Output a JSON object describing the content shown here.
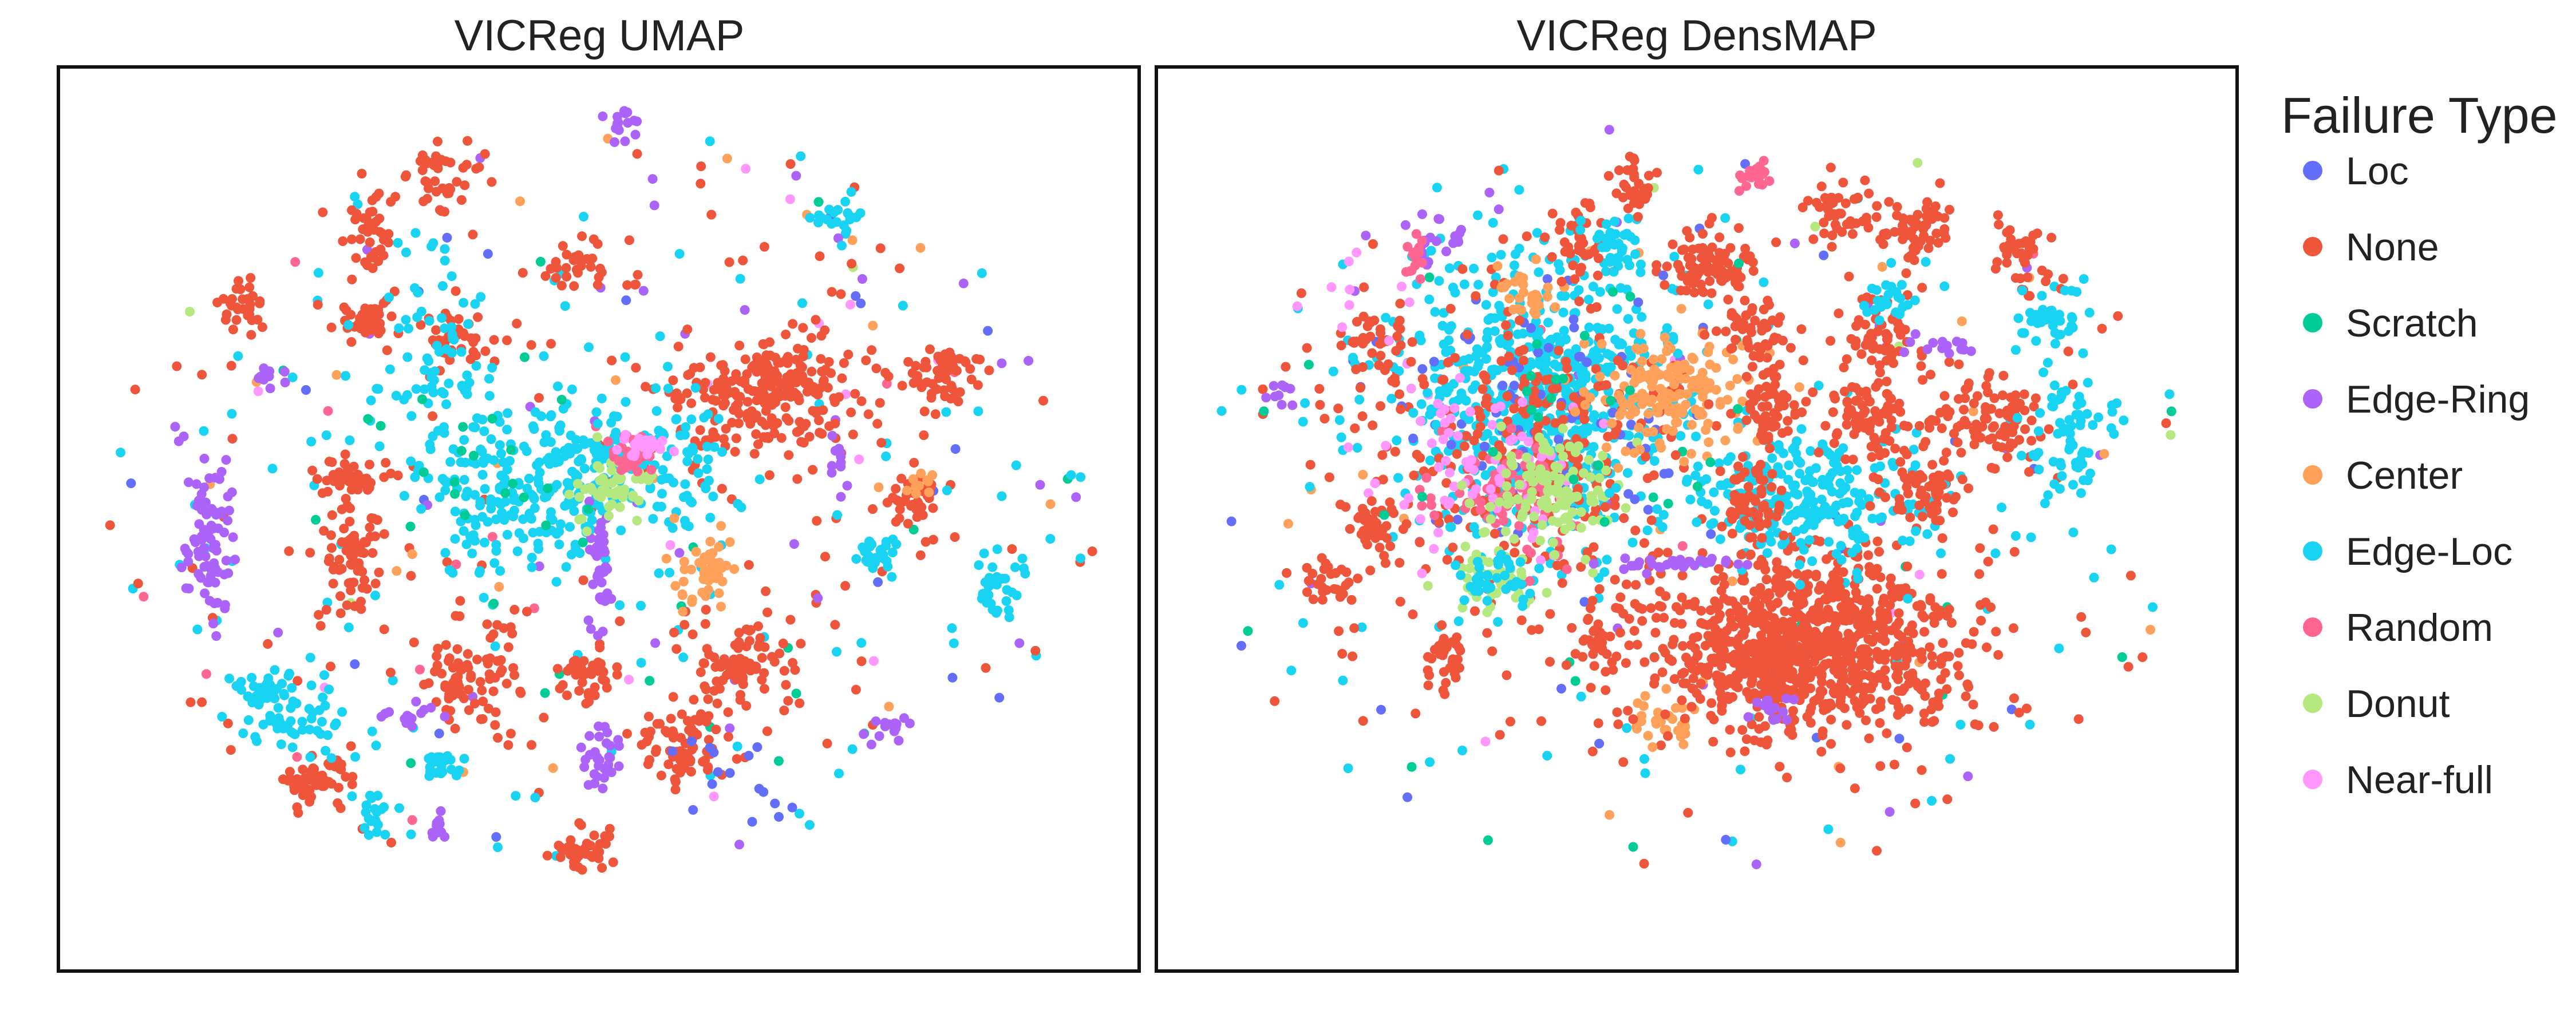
{
  "chart_data": {
    "type": "scatter",
    "legend": {
      "title": "Failure Type",
      "placement": "right"
    },
    "categories": [
      {
        "name": "Loc",
        "color": "#636efa"
      },
      {
        "name": "None",
        "color": "#ef553b"
      },
      {
        "name": "Scratch",
        "color": "#00cc96"
      },
      {
        "name": "Edge-Ring",
        "color": "#ab63fa"
      },
      {
        "name": "Center",
        "color": "#ffa15a"
      },
      {
        "name": "Edge-Loc",
        "color": "#19d3f3"
      },
      {
        "name": "Random",
        "color": "#ff6692"
      },
      {
        "name": "Donut",
        "color": "#b6e880"
      },
      {
        "name": "Near-full",
        "color": "#ff97ff"
      }
    ],
    "panels": [
      {
        "title": "VICReg UMAP",
        "axes_visible": false,
        "grid": false,
        "clusters": [
          {
            "cat": "Edge-Ring",
            "x": 0.14,
            "y": 0.52,
            "sx": 0.012,
            "sy": 0.045,
            "n": 90
          },
          {
            "cat": "None",
            "x": 0.27,
            "y": 0.54,
            "sx": 0.012,
            "sy": 0.035,
            "n": 70
          },
          {
            "cat": "None",
            "x": 0.38,
            "y": 0.67,
            "sx": 0.025,
            "sy": 0.03,
            "n": 90
          },
          {
            "cat": "None",
            "x": 0.49,
            "y": 0.67,
            "sx": 0.015,
            "sy": 0.015,
            "n": 40
          },
          {
            "cat": "None",
            "x": 0.58,
            "y": 0.75,
            "sx": 0.022,
            "sy": 0.02,
            "n": 70
          },
          {
            "cat": "None",
            "x": 0.63,
            "y": 0.66,
            "sx": 0.025,
            "sy": 0.025,
            "n": 80
          },
          {
            "cat": "None",
            "x": 0.48,
            "y": 0.87,
            "sx": 0.014,
            "sy": 0.012,
            "n": 40
          },
          {
            "cat": "None",
            "x": 0.24,
            "y": 0.79,
            "sx": 0.02,
            "sy": 0.012,
            "n": 50
          },
          {
            "cat": "None",
            "x": 0.66,
            "y": 0.36,
            "sx": 0.045,
            "sy": 0.032,
            "n": 260
          },
          {
            "cat": "None",
            "x": 0.82,
            "y": 0.34,
            "sx": 0.018,
            "sy": 0.02,
            "n": 60
          },
          {
            "cat": "None",
            "x": 0.79,
            "y": 0.48,
            "sx": 0.015,
            "sy": 0.015,
            "n": 40
          },
          {
            "cat": "None",
            "x": 0.29,
            "y": 0.28,
            "sx": 0.015,
            "sy": 0.015,
            "n": 40
          },
          {
            "cat": "None",
            "x": 0.36,
            "y": 0.12,
            "sx": 0.015,
            "sy": 0.02,
            "n": 40
          },
          {
            "cat": "None",
            "x": 0.48,
            "y": 0.22,
            "sx": 0.012,
            "sy": 0.015,
            "n": 30
          },
          {
            "cat": "None",
            "x": 0.29,
            "y": 0.18,
            "sx": 0.012,
            "sy": 0.025,
            "n": 40
          },
          {
            "cat": "None",
            "x": 0.37,
            "y": 0.3,
            "sx": 0.018,
            "sy": 0.02,
            "n": 40
          },
          {
            "cat": "None",
            "x": 0.17,
            "y": 0.27,
            "sx": 0.01,
            "sy": 0.015,
            "n": 30
          },
          {
            "cat": "None",
            "x": 0.27,
            "y": 0.45,
            "sx": 0.025,
            "sy": 0.01,
            "n": 40
          },
          {
            "cat": "Edge-Loc",
            "x": 0.42,
            "y": 0.48,
            "sx": 0.04,
            "sy": 0.04,
            "n": 160
          },
          {
            "cat": "Edge-Loc",
            "x": 0.49,
            "y": 0.44,
            "sx": 0.035,
            "sy": 0.04,
            "n": 120
          },
          {
            "cat": "Edge-Loc",
            "x": 0.58,
            "y": 0.45,
            "sx": 0.02,
            "sy": 0.05,
            "n": 60
          },
          {
            "cat": "Edge-Loc",
            "x": 0.35,
            "y": 0.33,
            "sx": 0.03,
            "sy": 0.06,
            "n": 80
          },
          {
            "cat": "Edge-Loc",
            "x": 0.22,
            "y": 0.72,
            "sx": 0.025,
            "sy": 0.02,
            "n": 50
          },
          {
            "cat": "Edge-Loc",
            "x": 0.29,
            "y": 0.82,
            "sx": 0.01,
            "sy": 0.02,
            "n": 20
          },
          {
            "cat": "Edge-Loc",
            "x": 0.87,
            "y": 0.58,
            "sx": 0.012,
            "sy": 0.02,
            "n": 30
          },
          {
            "cat": "Edge-Loc",
            "x": 0.76,
            "y": 0.54,
            "sx": 0.012,
            "sy": 0.012,
            "n": 30
          },
          {
            "cat": "Edge-Loc",
            "x": 0.72,
            "y": 0.17,
            "sx": 0.012,
            "sy": 0.012,
            "n": 20
          },
          {
            "cat": "Edge-Loc",
            "x": 0.36,
            "y": 0.77,
            "sx": 0.012,
            "sy": 0.008,
            "n": 20
          },
          {
            "cat": "Edge-Loc",
            "x": 0.19,
            "y": 0.69,
            "sx": 0.02,
            "sy": 0.01,
            "n": 30
          },
          {
            "cat": "Edge-Ring",
            "x": 0.5,
            "y": 0.57,
            "sx": 0.005,
            "sy": 0.035,
            "n": 40
          },
          {
            "cat": "Edge-Ring",
            "x": 0.5,
            "y": 0.76,
            "sx": 0.01,
            "sy": 0.02,
            "n": 30
          },
          {
            "cat": "Edge-Ring",
            "x": 0.52,
            "y": 0.06,
            "sx": 0.01,
            "sy": 0.01,
            "n": 15
          },
          {
            "cat": "Edge-Ring",
            "x": 0.35,
            "y": 0.84,
            "sx": 0.005,
            "sy": 0.01,
            "n": 10
          },
          {
            "cat": "Edge-Ring",
            "x": 0.77,
            "y": 0.73,
            "sx": 0.012,
            "sy": 0.008,
            "n": 15
          },
          {
            "cat": "Edge-Ring",
            "x": 0.19,
            "y": 0.34,
            "sx": 0.01,
            "sy": 0.006,
            "n": 10
          },
          {
            "cat": "Edge-Ring",
            "x": 0.72,
            "y": 0.43,
            "sx": 0.006,
            "sy": 0.015,
            "n": 10
          },
          {
            "cat": "Edge-Ring",
            "x": 0.33,
            "y": 0.72,
            "sx": 0.015,
            "sy": 0.006,
            "n": 15
          },
          {
            "cat": "Donut",
            "x": 0.51,
            "y": 0.46,
            "sx": 0.018,
            "sy": 0.02,
            "n": 50
          },
          {
            "cat": "Random",
            "x": 0.53,
            "y": 0.43,
            "sx": 0.012,
            "sy": 0.01,
            "n": 30
          },
          {
            "cat": "Near-full",
            "x": 0.54,
            "y": 0.42,
            "sx": 0.012,
            "sy": 0.01,
            "n": 25
          },
          {
            "cat": "Center",
            "x": 0.6,
            "y": 0.56,
            "sx": 0.015,
            "sy": 0.02,
            "n": 50
          },
          {
            "cat": "Center",
            "x": 0.8,
            "y": 0.46,
            "sx": 0.006,
            "sy": 0.01,
            "n": 10
          },
          {
            "cat": "Loc",
            "x": 0.63,
            "y": 0.8,
            "sx": 0.03,
            "sy": 0.03,
            "n": 15
          },
          {
            "cat": "Scratch",
            "x": 0.4,
            "y": 0.45,
            "sx": 0.06,
            "sy": 0.05,
            "n": 20
          }
        ],
        "scatter_noise": 380
      },
      {
        "title": "VICReg DensMAP",
        "axes_visible": false,
        "grid": false,
        "clusters": [
          {
            "cat": "Edge-Loc",
            "x": 0.36,
            "y": 0.36,
            "sx": 0.07,
            "sy": 0.08,
            "n": 620
          },
          {
            "cat": "Loc",
            "x": 0.36,
            "y": 0.38,
            "sx": 0.07,
            "sy": 0.08,
            "n": 80
          },
          {
            "cat": "None",
            "x": 0.33,
            "y": 0.43,
            "sx": 0.08,
            "sy": 0.09,
            "n": 300
          },
          {
            "cat": "Random",
            "x": 0.32,
            "y": 0.47,
            "sx": 0.03,
            "sy": 0.03,
            "n": 80
          },
          {
            "cat": "Near-full",
            "x": 0.29,
            "y": 0.45,
            "sx": 0.05,
            "sy": 0.05,
            "n": 70
          },
          {
            "cat": "Donut",
            "x": 0.37,
            "y": 0.47,
            "sx": 0.03,
            "sy": 0.03,
            "n": 130
          },
          {
            "cat": "Donut",
            "x": 0.31,
            "y": 0.57,
            "sx": 0.02,
            "sy": 0.018,
            "n": 50
          },
          {
            "cat": "Center",
            "x": 0.48,
            "y": 0.36,
            "sx": 0.035,
            "sy": 0.035,
            "n": 170
          },
          {
            "cat": "Center",
            "x": 0.34,
            "y": 0.25,
            "sx": 0.015,
            "sy": 0.015,
            "n": 30
          },
          {
            "cat": "Center",
            "x": 0.47,
            "y": 0.72,
            "sx": 0.015,
            "sy": 0.015,
            "n": 30
          },
          {
            "cat": "None",
            "x": 0.6,
            "y": 0.64,
            "sx": 0.07,
            "sy": 0.05,
            "n": 950
          },
          {
            "cat": "Edge-Loc",
            "x": 0.61,
            "y": 0.48,
            "sx": 0.06,
            "sy": 0.035,
            "n": 260
          },
          {
            "cat": "None",
            "x": 0.55,
            "y": 0.48,
            "sx": 0.015,
            "sy": 0.02,
            "n": 60
          },
          {
            "cat": "None",
            "x": 0.57,
            "y": 0.38,
            "sx": 0.018,
            "sy": 0.025,
            "n": 60
          },
          {
            "cat": "None",
            "x": 0.66,
            "y": 0.39,
            "sx": 0.02,
            "sy": 0.025,
            "n": 80
          },
          {
            "cat": "None",
            "x": 0.71,
            "y": 0.47,
            "sx": 0.018,
            "sy": 0.02,
            "n": 60
          },
          {
            "cat": "None",
            "x": 0.77,
            "y": 0.39,
            "sx": 0.025,
            "sy": 0.025,
            "n": 90
          },
          {
            "cat": "None",
            "x": 0.67,
            "y": 0.3,
            "sx": 0.02,
            "sy": 0.025,
            "n": 60
          },
          {
            "cat": "None",
            "x": 0.55,
            "y": 0.29,
            "sx": 0.018,
            "sy": 0.02,
            "n": 50
          },
          {
            "cat": "None",
            "x": 0.53,
            "y": 0.22,
            "sx": 0.015,
            "sy": 0.02,
            "n": 40
          },
          {
            "cat": "None",
            "x": 0.63,
            "y": 0.16,
            "sx": 0.015,
            "sy": 0.018,
            "n": 40
          },
          {
            "cat": "None",
            "x": 0.7,
            "y": 0.18,
            "sx": 0.02,
            "sy": 0.02,
            "n": 60
          },
          {
            "cat": "None",
            "x": 0.2,
            "y": 0.31,
            "sx": 0.015,
            "sy": 0.018,
            "n": 40
          },
          {
            "cat": "None",
            "x": 0.2,
            "y": 0.51,
            "sx": 0.015,
            "sy": 0.015,
            "n": 40
          },
          {
            "cat": "None",
            "x": 0.49,
            "y": 0.22,
            "sx": 0.015,
            "sy": 0.018,
            "n": 40
          },
          {
            "cat": "None",
            "x": 0.39,
            "y": 0.2,
            "sx": 0.015,
            "sy": 0.02,
            "n": 40
          },
          {
            "cat": "None",
            "x": 0.44,
            "y": 0.13,
            "sx": 0.01,
            "sy": 0.018,
            "n": 30
          },
          {
            "cat": "None",
            "x": 0.16,
            "y": 0.57,
            "sx": 0.015,
            "sy": 0.01,
            "n": 30
          },
          {
            "cat": "None",
            "x": 0.27,
            "y": 0.65,
            "sx": 0.01,
            "sy": 0.02,
            "n": 30
          },
          {
            "cat": "None",
            "x": 0.41,
            "y": 0.64,
            "sx": 0.01,
            "sy": 0.02,
            "n": 30
          },
          {
            "cat": "None",
            "x": 0.8,
            "y": 0.21,
            "sx": 0.015,
            "sy": 0.02,
            "n": 40
          },
          {
            "cat": "Edge-Loc",
            "x": 0.83,
            "y": 0.28,
            "sx": 0.015,
            "sy": 0.02,
            "n": 40
          },
          {
            "cat": "Edge-Loc",
            "x": 0.84,
            "y": 0.41,
            "sx": 0.02,
            "sy": 0.04,
            "n": 70
          },
          {
            "cat": "Edge-Loc",
            "x": 0.31,
            "y": 0.57,
            "sx": 0.02,
            "sy": 0.02,
            "n": 40
          },
          {
            "cat": "Edge-Loc",
            "x": 0.42,
            "y": 0.2,
            "sx": 0.012,
            "sy": 0.018,
            "n": 30
          },
          {
            "cat": "Edge-Loc",
            "x": 0.68,
            "y": 0.26,
            "sx": 0.012,
            "sy": 0.015,
            "n": 25
          },
          {
            "cat": "Edge-Ring",
            "x": 0.26,
            "y": 0.19,
            "sx": 0.012,
            "sy": 0.015,
            "n": 20
          },
          {
            "cat": "Edge-Ring",
            "x": 0.48,
            "y": 0.55,
            "sx": 0.04,
            "sy": 0.006,
            "n": 30
          },
          {
            "cat": "Edge-Ring",
            "x": 0.57,
            "y": 0.71,
            "sx": 0.01,
            "sy": 0.01,
            "n": 15
          },
          {
            "cat": "Edge-Ring",
            "x": 0.73,
            "y": 0.31,
            "sx": 0.02,
            "sy": 0.006,
            "n": 15
          },
          {
            "cat": "Edge-Ring",
            "x": 0.11,
            "y": 0.36,
            "sx": 0.01,
            "sy": 0.008,
            "n": 10
          },
          {
            "cat": "Random",
            "x": 0.55,
            "y": 0.12,
            "sx": 0.012,
            "sy": 0.008,
            "n": 20
          },
          {
            "cat": "Random",
            "x": 0.24,
            "y": 0.21,
            "sx": 0.006,
            "sy": 0.015,
            "n": 15
          },
          {
            "cat": "Near-full",
            "x": 0.18,
            "y": 0.25,
            "sx": 0.03,
            "sy": 0.03,
            "n": 10
          },
          {
            "cat": "Scratch",
            "x": 0.4,
            "y": 0.4,
            "sx": 0.08,
            "sy": 0.08,
            "n": 25
          }
        ],
        "scatter_noise": 260
      }
    ]
  }
}
